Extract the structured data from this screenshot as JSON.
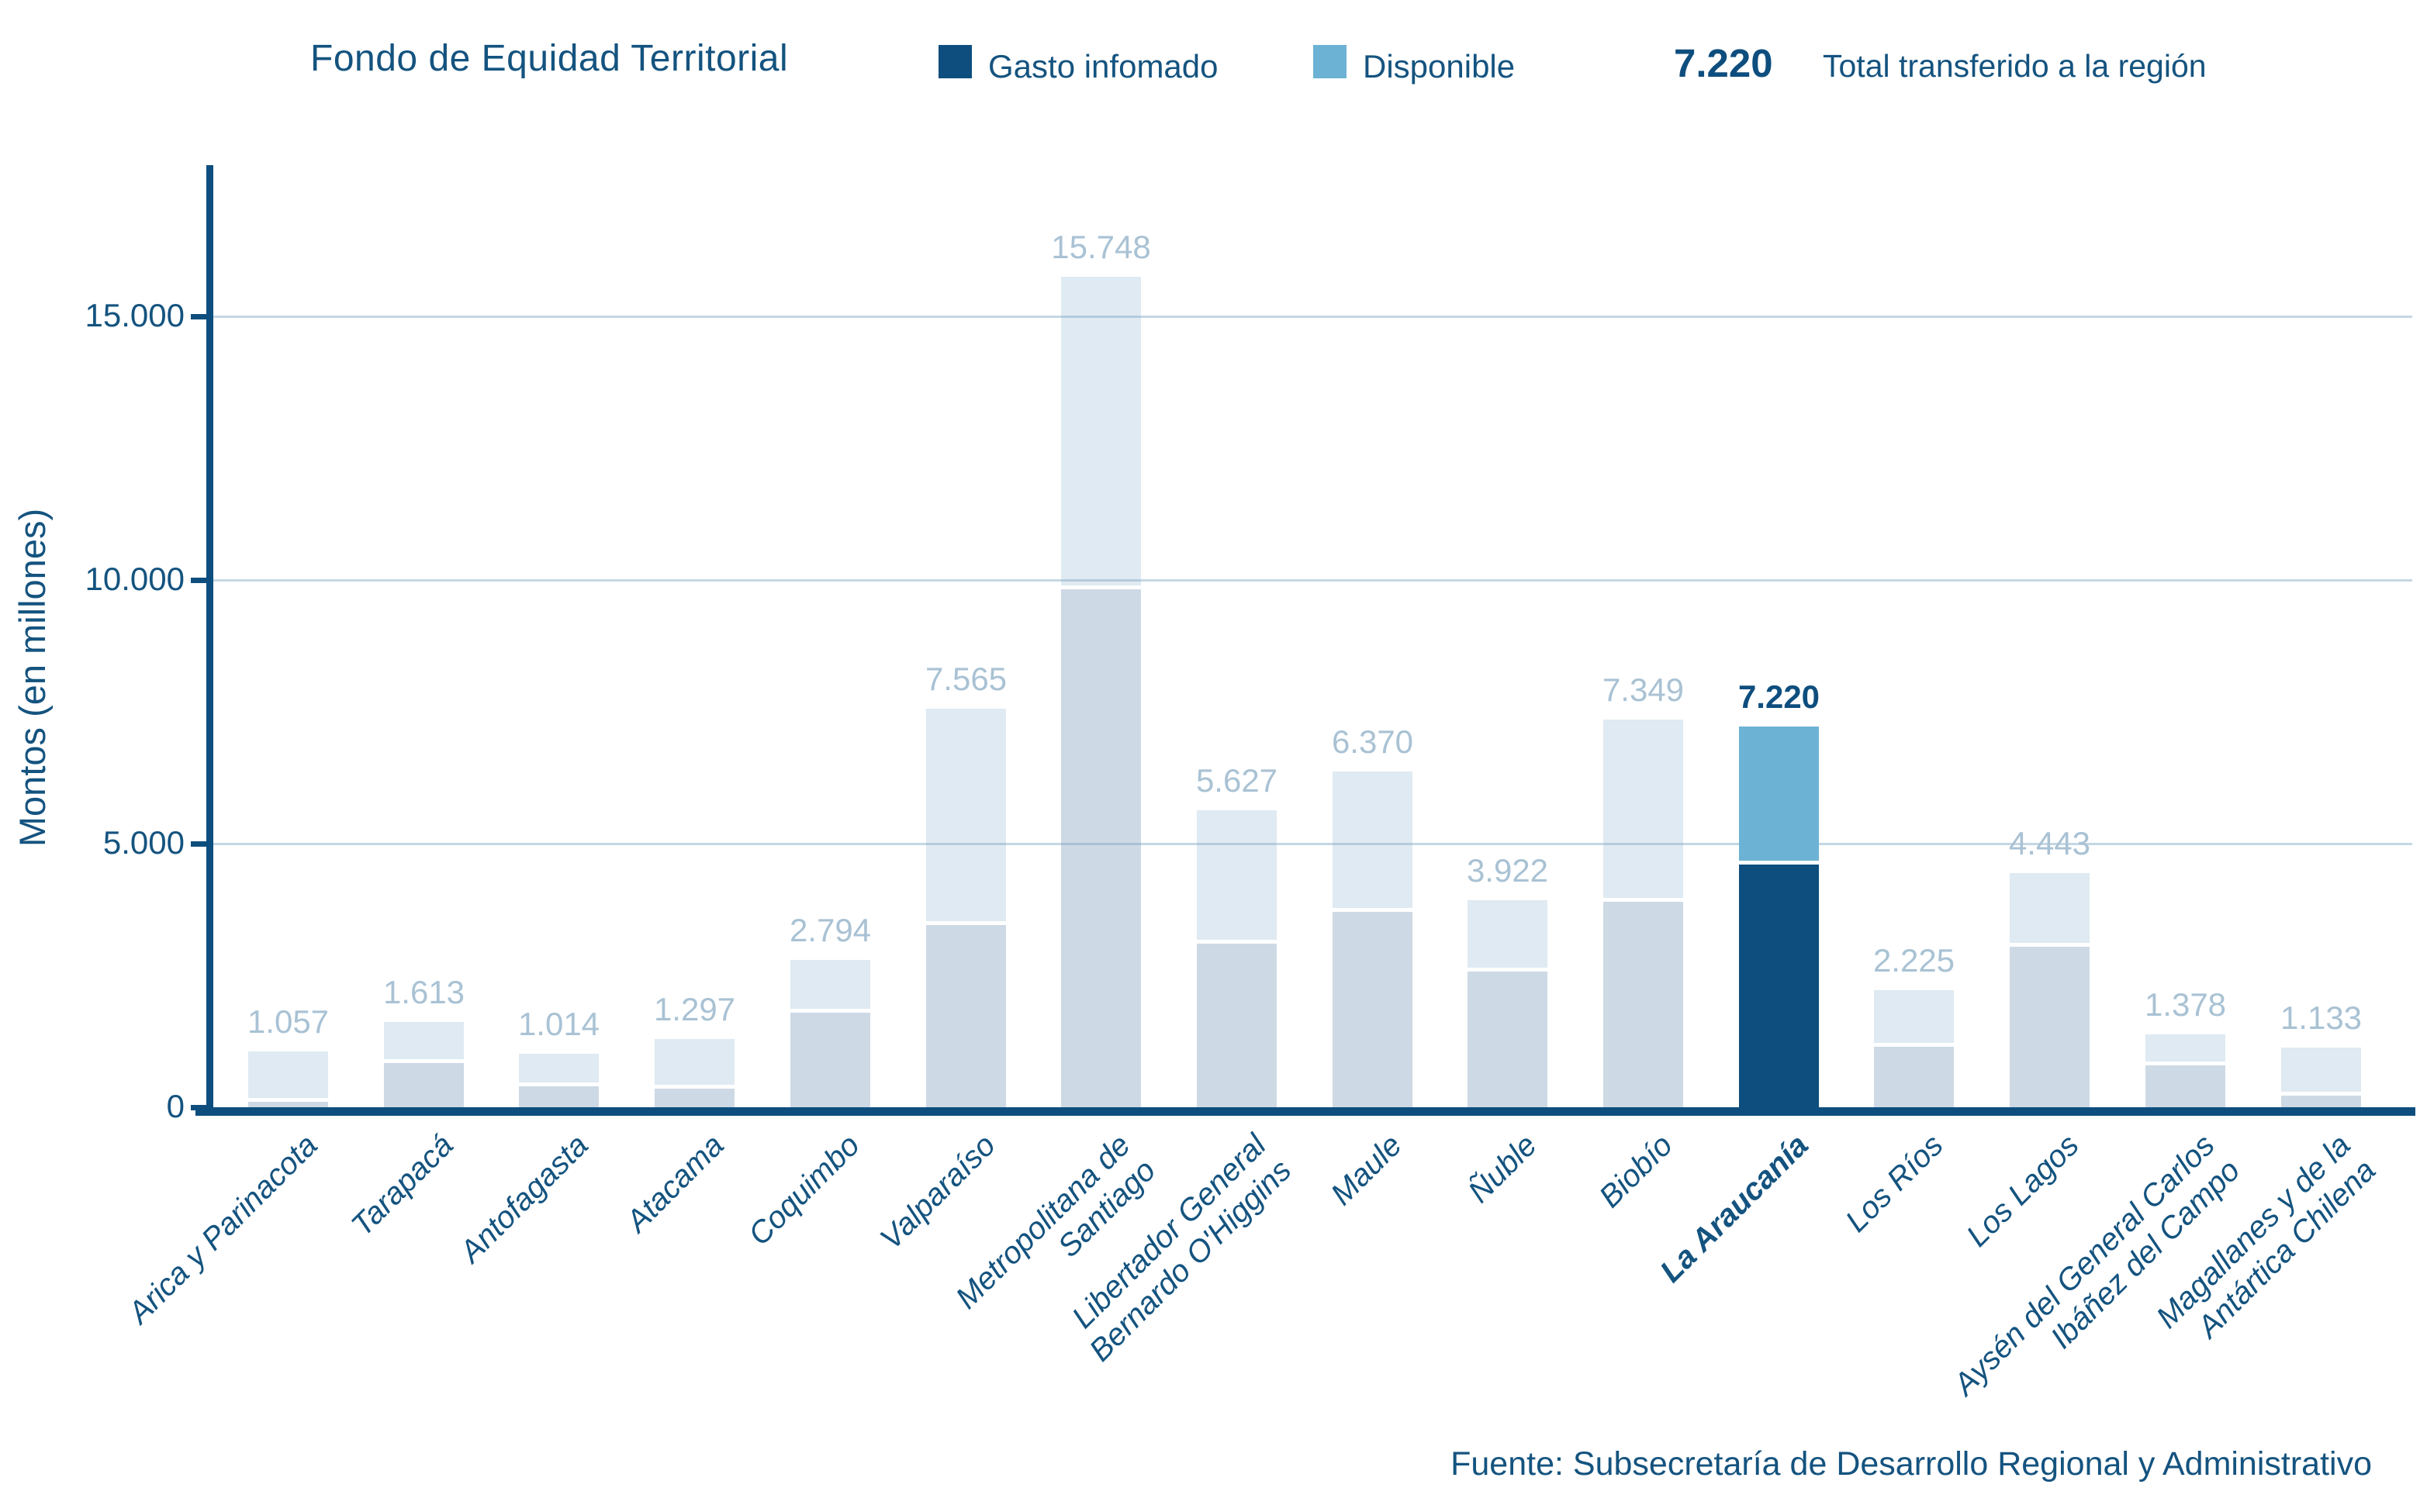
{
  "header": {
    "title": "Fondo de Equidad Territorial",
    "legend": [
      {
        "label": "Gasto infomado",
        "color": "#0E4E7E"
      },
      {
        "label": "Disponible",
        "color": "#6CB2D4"
      }
    ],
    "total_value": "7.220",
    "total_label": "Total transferido a la región"
  },
  "source": "Fuente: Subsecretaría de Desarrollo Regional y Administrativo",
  "colors": {
    "navy": "#0E4E7E",
    "accent_blue": "#6CB2D4",
    "bar_gasto_normal": "#CDD9E5",
    "bar_disponible_normal": "#DFEAF2",
    "value_label": "#A9C2D4",
    "gridline": "#C8DCE8",
    "text": "#14537F"
  },
  "chart_data": {
    "type": "bar",
    "stacked": true,
    "title": "Fondo de Equidad Territorial",
    "ylabel": "Montos (en millones)",
    "xlabel": "",
    "ylim": [
      0,
      17800
    ],
    "grid": "horizontal-only",
    "legend_position": "top",
    "series_names": [
      "Gasto infomado",
      "Disponible"
    ],
    "yticks": [
      {
        "value": 0,
        "label": "0"
      },
      {
        "value": 5000,
        "label": "5.000"
      },
      {
        "value": 10000,
        "label": "10.000"
      },
      {
        "value": 15000,
        "label": "15.000"
      }
    ],
    "note": "Totals are printed above each bar; segment split (gasto/disponible) estimated from gridlines",
    "highlight_index": 11,
    "bars": [
      {
        "id": "arica-y-parinacota",
        "label_lines": [
          "Arica y Parinacota"
        ],
        "total": 1057,
        "total_label": "1.057",
        "gasto": 100,
        "disponible": 957,
        "highlight": false
      },
      {
        "id": "tarapaca",
        "label_lines": [
          "Tarapacá"
        ],
        "total": 1613,
        "total_label": "1.613",
        "gasto": 840,
        "disponible": 773,
        "highlight": false
      },
      {
        "id": "antofagasta",
        "label_lines": [
          "Antofagasta"
        ],
        "total": 1014,
        "total_label": "1.014",
        "gasto": 400,
        "disponible": 614,
        "highlight": false
      },
      {
        "id": "atacama",
        "label_lines": [
          "Atacama"
        ],
        "total": 1297,
        "total_label": "1.297",
        "gasto": 350,
        "disponible": 947,
        "highlight": false
      },
      {
        "id": "coquimbo",
        "label_lines": [
          "Coquimbo"
        ],
        "total": 2794,
        "total_label": "2.794",
        "gasto": 1800,
        "disponible": 994,
        "highlight": false
      },
      {
        "id": "valparaiso",
        "label_lines": [
          "Valparaíso"
        ],
        "total": 7565,
        "total_label": "7.565",
        "gasto": 3450,
        "disponible": 4115,
        "highlight": false
      },
      {
        "id": "metropolitana-de-santiago",
        "label_lines": [
          "Metropolitana de",
          "Santiago"
        ],
        "total": 15748,
        "total_label": "15.748",
        "gasto": 9820,
        "disponible": 5928,
        "highlight": false
      },
      {
        "id": "libertador-general-bernardo-ohiggins",
        "label_lines": [
          "Libertador General",
          "Bernardo O'Higgins"
        ],
        "total": 5627,
        "total_label": "5.627",
        "gasto": 3100,
        "disponible": 2527,
        "highlight": false
      },
      {
        "id": "maule",
        "label_lines": [
          "Maule"
        ],
        "total": 6370,
        "total_label": "6.370",
        "gasto": 3700,
        "disponible": 2670,
        "highlight": false
      },
      {
        "id": "nuble",
        "label_lines": [
          "Ñuble"
        ],
        "total": 3922,
        "total_label": "3.922",
        "gasto": 2570,
        "disponible": 1352,
        "highlight": false
      },
      {
        "id": "biobio",
        "label_lines": [
          "Biobío"
        ],
        "total": 7349,
        "total_label": "7.349",
        "gasto": 3900,
        "disponible": 3449,
        "highlight": false
      },
      {
        "id": "la-araucania",
        "label_lines": [
          "La Araucanía"
        ],
        "total": 7220,
        "total_label": "7.220",
        "gasto": 4600,
        "disponible": 2620,
        "highlight": true
      },
      {
        "id": "los-rios",
        "label_lines": [
          "Los Ríos"
        ],
        "total": 2225,
        "total_label": "2.225",
        "gasto": 1150,
        "disponible": 1075,
        "highlight": false
      },
      {
        "id": "los-lagos",
        "label_lines": [
          "Los Lagos"
        ],
        "total": 4443,
        "total_label": "4.443",
        "gasto": 3050,
        "disponible": 1393,
        "highlight": false
      },
      {
        "id": "aysen-del-general-carlos-ibanez-del-campo",
        "label_lines": [
          "Aysén del General Carlos",
          "Ibáñez del Campo"
        ],
        "total": 1378,
        "total_label": "1.378",
        "gasto": 800,
        "disponible": 578,
        "highlight": false
      },
      {
        "id": "magallanes-y-de-la-antartica-chilena",
        "label_lines": [
          "Magallanes y de la",
          "Antártica Chilena"
        ],
        "total": 1133,
        "total_label": "1.133",
        "gasto": 220,
        "disponible": 913,
        "highlight": false
      }
    ]
  }
}
